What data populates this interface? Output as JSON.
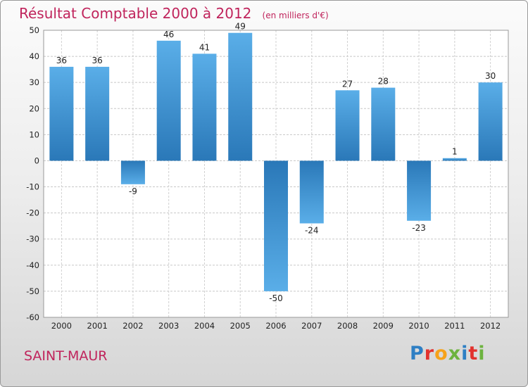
{
  "header": {
    "title": "Résultat Comptable 2000 à 2012",
    "unit": "(en milliers d'€)"
  },
  "footer": {
    "commune": "SAINT-MAUR",
    "logo": {
      "letters": [
        {
          "ch": "P",
          "color": "#2e7fc4"
        },
        {
          "ch": "r",
          "color": "#e2322e"
        },
        {
          "ch": "o",
          "color": "#f6a21a"
        },
        {
          "ch": "x",
          "color": "#6db33f"
        },
        {
          "ch": "i",
          "color": "#2e7fc4"
        },
        {
          "ch": "t",
          "color": "#e2322e"
        },
        {
          "ch": "i",
          "color": "#6db33f"
        }
      ]
    }
  },
  "chart_data": {
    "type": "bar",
    "title": "Résultat Comptable 2000 à 2012",
    "subtitle": "(en milliers d'€)",
    "xlabel": "",
    "ylabel": "",
    "categories": [
      "2000",
      "2001",
      "2002",
      "2003",
      "2004",
      "2005",
      "2006",
      "2007",
      "2008",
      "2009",
      "2010",
      "2011",
      "2012"
    ],
    "values": [
      36,
      36,
      -9,
      46,
      41,
      49,
      -50,
      -24,
      27,
      28,
      -23,
      1,
      30
    ],
    "ylim": [
      -60,
      50
    ],
    "yticks": [
      50,
      40,
      30,
      20,
      10,
      0,
      -10,
      -20,
      -30,
      -40,
      -50,
      -60
    ],
    "grid": true,
    "bar_color_light": "#5aaee8",
    "bar_color_dark": "#2a78b8"
  }
}
